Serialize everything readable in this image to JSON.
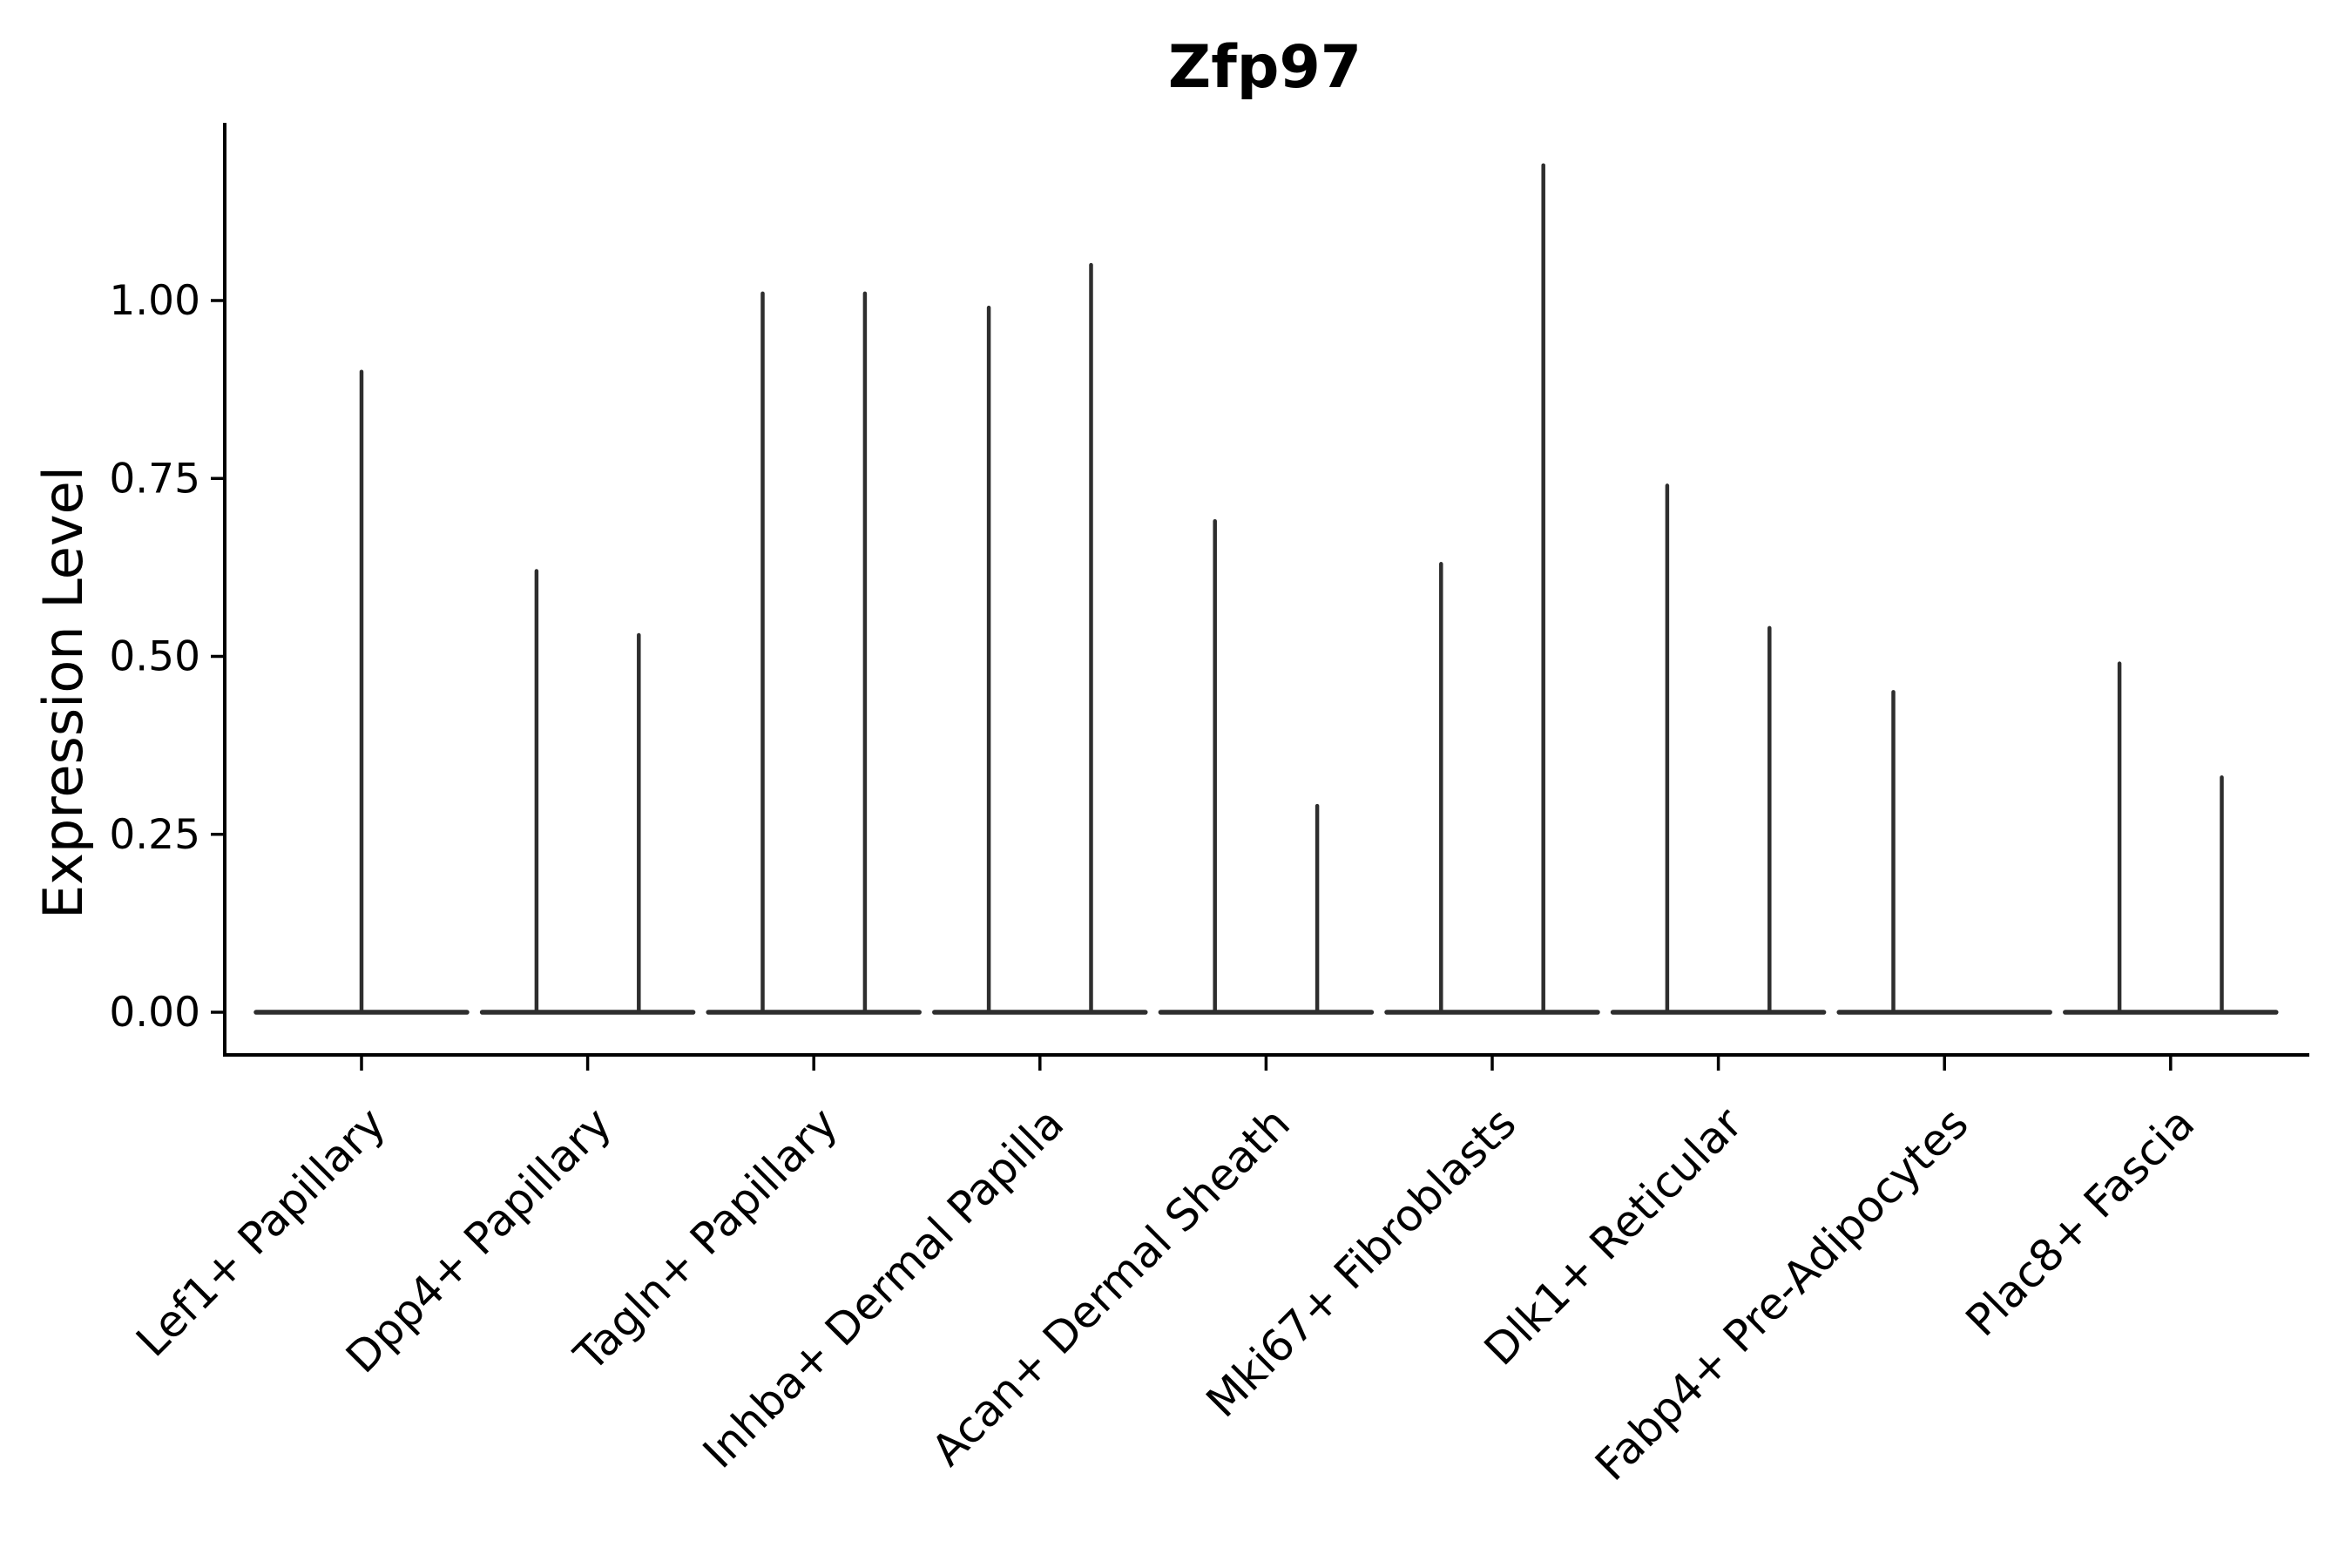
{
  "chart_data": {
    "type": "violin",
    "title": "Zfp97",
    "xlabel": "",
    "ylabel": "Expression Level",
    "ytick_labels": [
      "0.00",
      "0.25",
      "0.50",
      "0.75",
      "1.00"
    ],
    "ytick_values": [
      0,
      0.25,
      0.5,
      0.75,
      1.0
    ],
    "ylim": [
      0,
      1.25
    ],
    "grid": false,
    "legend": "none",
    "note": "Single-cell gene expression violin plot. Every violin is collapsed: the density mass lies at expression 0 (wide flat base line) with a hairline spike rising to the maximum expression value. Categories with two spikes contain two side-by-side (dodged) violins.",
    "categories": [
      "Lef1+ Papillary",
      "Dpp4+ Papillary",
      "Tagln+ Papillary",
      "Inhba+ Dermal Papilla",
      "Acan+ Dermal Sheath",
      "Mki67+ Fibroblasts",
      "Dlk1+ Reticular",
      "Fabp4+ Pre-Adipocytes",
      "Plac8+ Fascia"
    ],
    "series": [
      {
        "category": "Lef1+ Papillary",
        "violins": [
          {
            "position": "center",
            "max": 0.9
          }
        ]
      },
      {
        "category": "Dpp4+ Papillary",
        "violins": [
          {
            "position": "left",
            "max": 0.62
          },
          {
            "position": "right",
            "max": 0.53
          }
        ]
      },
      {
        "category": "Tagln+ Papillary",
        "violins": [
          {
            "position": "left",
            "max": 1.01
          },
          {
            "position": "right",
            "max": 1.01
          }
        ]
      },
      {
        "category": "Inhba+ Dermal Papilla",
        "violins": [
          {
            "position": "left",
            "max": 0.99
          },
          {
            "position": "right",
            "max": 1.05
          }
        ]
      },
      {
        "category": "Acan+ Dermal Sheath",
        "violins": [
          {
            "position": "left",
            "max": 0.69
          },
          {
            "position": "right",
            "max": 0.29
          }
        ]
      },
      {
        "category": "Mki67+ Fibroblasts",
        "violins": [
          {
            "position": "left",
            "max": 0.63
          },
          {
            "position": "right",
            "max": 1.19
          }
        ]
      },
      {
        "category": "Dlk1+ Reticular",
        "violins": [
          {
            "position": "left",
            "max": 0.74
          },
          {
            "position": "right",
            "max": 0.54
          }
        ]
      },
      {
        "category": "Fabp4+ Pre-Adipocytes",
        "violins": [
          {
            "position": "left",
            "max": 0.45
          }
        ]
      },
      {
        "category": "Plac8+ Fascia",
        "violins": [
          {
            "position": "left",
            "max": 0.49
          },
          {
            "position": "right",
            "max": 0.33
          }
        ]
      }
    ],
    "colors": {
      "violin_line": "#2e2e2e",
      "axis": "#000000",
      "text": "#000000",
      "background": "#ffffff"
    }
  }
}
